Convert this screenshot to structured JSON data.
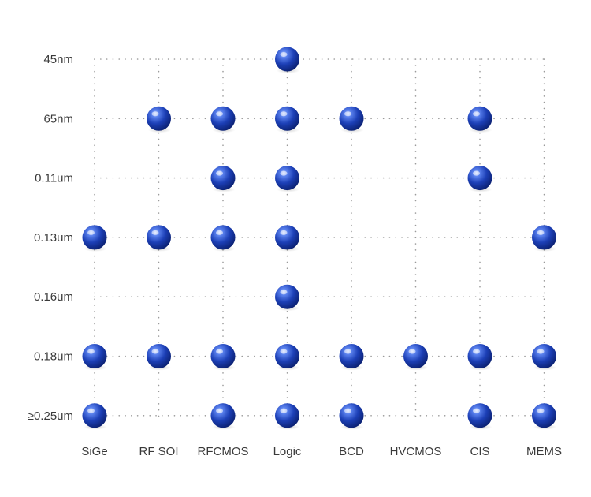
{
  "chart_data": {
    "type": "scatter",
    "title": "",
    "xlabel": "",
    "ylabel": "",
    "grid": true,
    "x_categories": [
      "SiGe",
      "RF SOI",
      "RFCMOS",
      "Logic",
      "BCD",
      "HVCMOS",
      "CIS",
      "MEMS"
    ],
    "y_categories": [
      "45nm",
      "65nm",
      "0.11um",
      "0.13um",
      "0.16um",
      "0.18um",
      "≥0.25um"
    ],
    "points": [
      {
        "x": "Logic",
        "y": "45nm"
      },
      {
        "x": "RF SOI",
        "y": "65nm"
      },
      {
        "x": "RFCMOS",
        "y": "65nm"
      },
      {
        "x": "Logic",
        "y": "65nm"
      },
      {
        "x": "BCD",
        "y": "65nm"
      },
      {
        "x": "CIS",
        "y": "65nm"
      },
      {
        "x": "RFCMOS",
        "y": "0.11um"
      },
      {
        "x": "Logic",
        "y": "0.11um"
      },
      {
        "x": "CIS",
        "y": "0.11um"
      },
      {
        "x": "SiGe",
        "y": "0.13um"
      },
      {
        "x": "RF SOI",
        "y": "0.13um"
      },
      {
        "x": "RFCMOS",
        "y": "0.13um"
      },
      {
        "x": "Logic",
        "y": "0.13um"
      },
      {
        "x": "MEMS",
        "y": "0.13um"
      },
      {
        "x": "Logic",
        "y": "0.16um"
      },
      {
        "x": "SiGe",
        "y": "0.18um"
      },
      {
        "x": "RF SOI",
        "y": "0.18um"
      },
      {
        "x": "RFCMOS",
        "y": "0.18um"
      },
      {
        "x": "Logic",
        "y": "0.18um"
      },
      {
        "x": "BCD",
        "y": "0.18um"
      },
      {
        "x": "HVCMOS",
        "y": "0.18um"
      },
      {
        "x": "CIS",
        "y": "0.18um"
      },
      {
        "x": "MEMS",
        "y": "0.18um"
      },
      {
        "x": "SiGe",
        "y": "≥0.25um"
      },
      {
        "x": "RFCMOS",
        "y": "≥0.25um"
      },
      {
        "x": "Logic",
        "y": "≥0.25um"
      },
      {
        "x": "BCD",
        "y": "≥0.25um"
      },
      {
        "x": "CIS",
        "y": "≥0.25um"
      },
      {
        "x": "MEMS",
        "y": "≥0.25um"
      }
    ],
    "marker_color": "#1a3fb5",
    "grid_color": "#9a9a9a",
    "text_color": "#3a3a3a"
  }
}
